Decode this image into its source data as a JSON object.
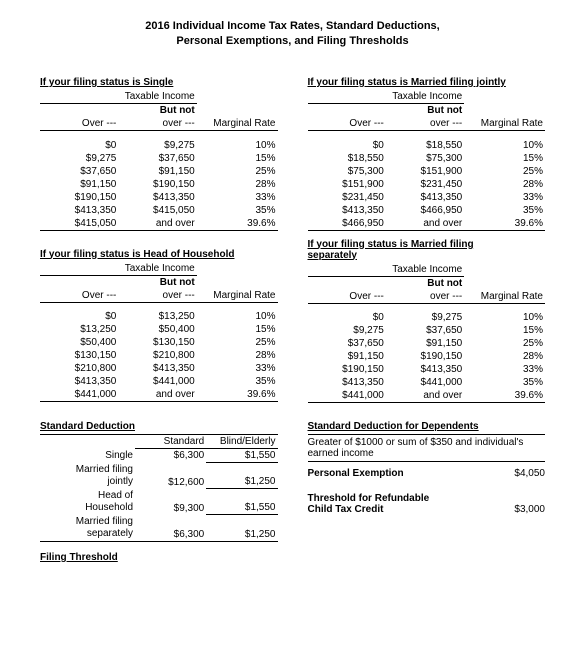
{
  "title_line1": "2016 Individual Income Tax Rates, Standard Deductions,",
  "title_line2": "Personal Exemptions, and Filing Thresholds",
  "headers": {
    "taxable_income": "Taxable Income",
    "over": "Over ---",
    "but_not": "But not",
    "over2": "over ---",
    "marginal_rate": "Marginal Rate"
  },
  "tables": {
    "single": {
      "heading": "If your filing status is Single",
      "rows": [
        {
          "over": "$0",
          "notover": "$9,275",
          "rate": "10%"
        },
        {
          "over": "$9,275",
          "notover": "$37,650",
          "rate": "15%"
        },
        {
          "over": "$37,650",
          "notover": "$91,150",
          "rate": "25%"
        },
        {
          "over": "$91,150",
          "notover": "$190,150",
          "rate": "28%"
        },
        {
          "over": "$190,150",
          "notover": "$413,350",
          "rate": "33%"
        },
        {
          "over": "$413,350",
          "notover": "$415,050",
          "rate": "35%"
        },
        {
          "over": "$415,050",
          "notover": "and over",
          "rate": "39.6%"
        }
      ]
    },
    "mfj": {
      "heading": "If your filing status is Married filing jointly",
      "rows": [
        {
          "over": "$0",
          "notover": "$18,550",
          "rate": "10%"
        },
        {
          "over": "$18,550",
          "notover": "$75,300",
          "rate": "15%"
        },
        {
          "over": "$75,300",
          "notover": "$151,900",
          "rate": "25%"
        },
        {
          "over": "$151,900",
          "notover": "$231,450",
          "rate": "28%"
        },
        {
          "over": "$231,450",
          "notover": "$413,350",
          "rate": "33%"
        },
        {
          "over": "$413,350",
          "notover": "$466,950",
          "rate": "35%"
        },
        {
          "over": "$466,950",
          "notover": "and over",
          "rate": "39.6%"
        }
      ]
    },
    "hoh": {
      "heading": "If your filing status is Head of Household",
      "rows": [
        {
          "over": "$0",
          "notover": "$13,250",
          "rate": "10%"
        },
        {
          "over": "$13,250",
          "notover": "$50,400",
          "rate": "15%"
        },
        {
          "over": "$50,400",
          "notover": "$130,150",
          "rate": "25%"
        },
        {
          "over": "$130,150",
          "notover": "$210,800",
          "rate": "28%"
        },
        {
          "over": "$210,800",
          "notover": "$413,350",
          "rate": "33%"
        },
        {
          "over": "$413,350",
          "notover": "$441,000",
          "rate": "35%"
        },
        {
          "over": "$441,000",
          "notover": "and over",
          "rate": "39.6%"
        }
      ]
    },
    "mfs": {
      "heading_line1": "If your filing status is Married filing",
      "heading_line2": "separately",
      "rows": [
        {
          "over": "$0",
          "notover": "$9,275",
          "rate": "10%"
        },
        {
          "over": "$9,275",
          "notover": "$37,650",
          "rate": "15%"
        },
        {
          "over": "$37,650",
          "notover": "$91,150",
          "rate": "25%"
        },
        {
          "over": "$91,150",
          "notover": "$190,150",
          "rate": "28%"
        },
        {
          "over": "$190,150",
          "notover": "$413,350",
          "rate": "33%"
        },
        {
          "over": "$413,350",
          "notover": "$441,000",
          "rate": "35%"
        },
        {
          "over": "$441,000",
          "notover": "and over",
          "rate": "39.6%"
        }
      ]
    }
  },
  "std_ded": {
    "heading": "Standard Deduction",
    "col1": "Standard",
    "col2": "Blind/Elderly",
    "rows": [
      {
        "label": "Single",
        "std": "$6,300",
        "be": "$1,550"
      },
      {
        "label": "Married filing jointly",
        "std": "$12,600",
        "be": "$1,250"
      },
      {
        "label": "Head of Household",
        "std": "$9,300",
        "be": "$1,550"
      },
      {
        "label": "Married filing separately",
        "std": "$6,300",
        "be": "$1,250"
      }
    ]
  },
  "dep_ded": {
    "heading": "Standard Deduction for Dependents",
    "note": "Greater of $1000 or sum of $350 and individual's earned income"
  },
  "personal_exemption": {
    "label": "Personal Exemption",
    "value": "$4,050"
  },
  "ctc": {
    "label1": "Threshold for Refundable",
    "label2": "Child Tax Credit",
    "value": "$3,000"
  },
  "filing_threshold": {
    "heading": "Filing Threshold"
  }
}
